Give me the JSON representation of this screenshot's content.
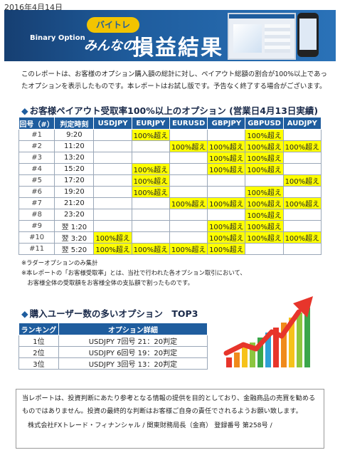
{
  "date": "2016年4月14日",
  "banner": {
    "brand": "Binary Option",
    "pill": "バイトレ",
    "sub": "みんなの",
    "title": "損益結果"
  },
  "intro": "このレポートは、お客様のオプション購入額の総計に対し、ペイアウト総額の割合が100%以上であったオプションを表示したものです。本レポートはお試し版です。予告なく終了する場合がございます。",
  "section1": {
    "marker": "◆",
    "title": "お客様ペイアウト受取率100%以上のオプション (営業日4月13日実績)"
  },
  "table1": {
    "headers": [
      "回号（#）",
      "判定時刻",
      "USDJPY",
      "EURJPY",
      "EURUSD",
      "GBPJPY",
      "GBPUSD",
      "AUDJPY"
    ],
    "mark": "100%超え",
    "rows": [
      {
        "no": "#1",
        "time": "9:20",
        "cells": [
          false,
          true,
          false,
          false,
          true,
          false
        ]
      },
      {
        "no": "#2",
        "time": "11:20",
        "cells": [
          false,
          false,
          true,
          true,
          true,
          true
        ]
      },
      {
        "no": "#3",
        "time": "13:20",
        "cells": [
          false,
          false,
          false,
          true,
          true,
          false
        ]
      },
      {
        "no": "#4",
        "time": "15:20",
        "cells": [
          false,
          true,
          false,
          true,
          true,
          false
        ]
      },
      {
        "no": "#5",
        "time": "17:20",
        "cells": [
          false,
          true,
          false,
          false,
          false,
          true
        ]
      },
      {
        "no": "#6",
        "time": "19:20",
        "cells": [
          false,
          true,
          false,
          false,
          true,
          false
        ]
      },
      {
        "no": "#7",
        "time": "21:20",
        "cells": [
          false,
          false,
          true,
          true,
          true,
          true
        ]
      },
      {
        "no": "#8",
        "time": "23:20",
        "cells": [
          false,
          false,
          false,
          false,
          true,
          false
        ]
      },
      {
        "no": "#9",
        "time": "翌 1:20",
        "cells": [
          false,
          false,
          false,
          true,
          true,
          false
        ]
      },
      {
        "no": "#10",
        "time": "翌 3:20",
        "cells": [
          true,
          false,
          false,
          true,
          true,
          true
        ]
      },
      {
        "no": "#11",
        "time": "翌 5:20",
        "cells": [
          true,
          true,
          true,
          true,
          false,
          false
        ]
      }
    ]
  },
  "notes": [
    "※ラダーオプションのみ集計",
    "※本レポートの「お客様受取率」とは、当社で行われた各オプション取引において、",
    "　お客様全体の受取額をお客様全体の支払額で割ったものです。"
  ],
  "section2": {
    "marker": "◆",
    "title": "購入ユーザー数の多いオプション　TOP3"
  },
  "table2": {
    "headers": [
      "ランキング",
      "オプション詳細"
    ],
    "rows": [
      {
        "rank": "1位",
        "detail": "USDJPY  7回号 21：20判定"
      },
      {
        "rank": "2位",
        "detail": "USDJPY  6回号 19：20判定"
      },
      {
        "rank": "3位",
        "detail": "USDJPY  3回号 13：20判定"
      }
    ]
  },
  "chart_colors": [
    "#e7352b",
    "#f08a1c",
    "#f6c21a",
    "#8cc63f",
    "#3aa64a",
    "#2ea0d6"
  ],
  "footer": {
    "disclaimer": "当レポートは、投資判断にあたり参考となる情報の提供を目的としており、金融商品の売買を勧めるものではありません。投資の最終的な判断はお客様ご自身の責任でされるようお願い致します。",
    "company": "株式会社FXトレード・フィナンシャル / 関東財務局長（金商） 登録番号 第258号 /"
  }
}
